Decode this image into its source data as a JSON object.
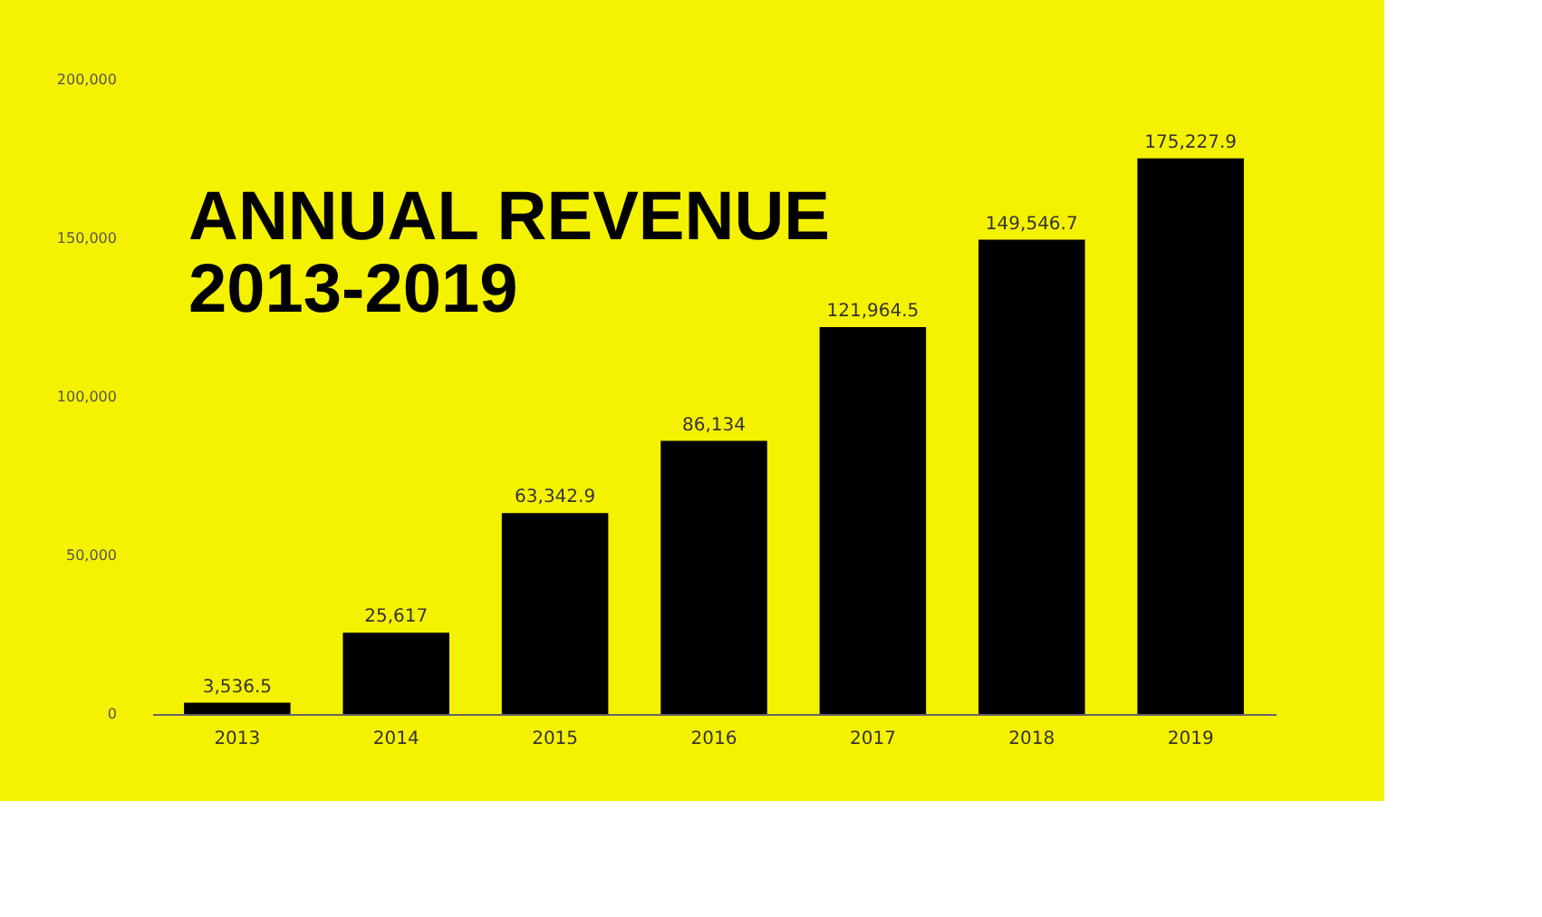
{
  "chart_data": {
    "type": "bar",
    "title": [
      "ANNUAL REVENUE",
      "2013-2019"
    ],
    "categories": [
      "2013",
      "2014",
      "2015",
      "2016",
      "2017",
      "2018",
      "2019"
    ],
    "values": [
      3536.5,
      25617,
      63342.9,
      86134,
      121964.5,
      149546.7,
      175227.9
    ],
    "value_labels": [
      "3,536.5",
      "25,617",
      "63,342.9",
      "86,134",
      "121,964.5",
      "149,546.7",
      "175,227.9"
    ],
    "color": "#000000",
    "ylim": [
      0,
      200000
    ],
    "yticks": [
      0,
      {
        "value": 50000,
        "label": "50,000"
      },
      {
        "value": 100000,
        "label": "100,000"
      },
      {
        "value": 150000,
        "label": "150,000"
      },
      {
        "value": 200000,
        "label": "200,000"
      }
    ],
    "grid": false
  }
}
